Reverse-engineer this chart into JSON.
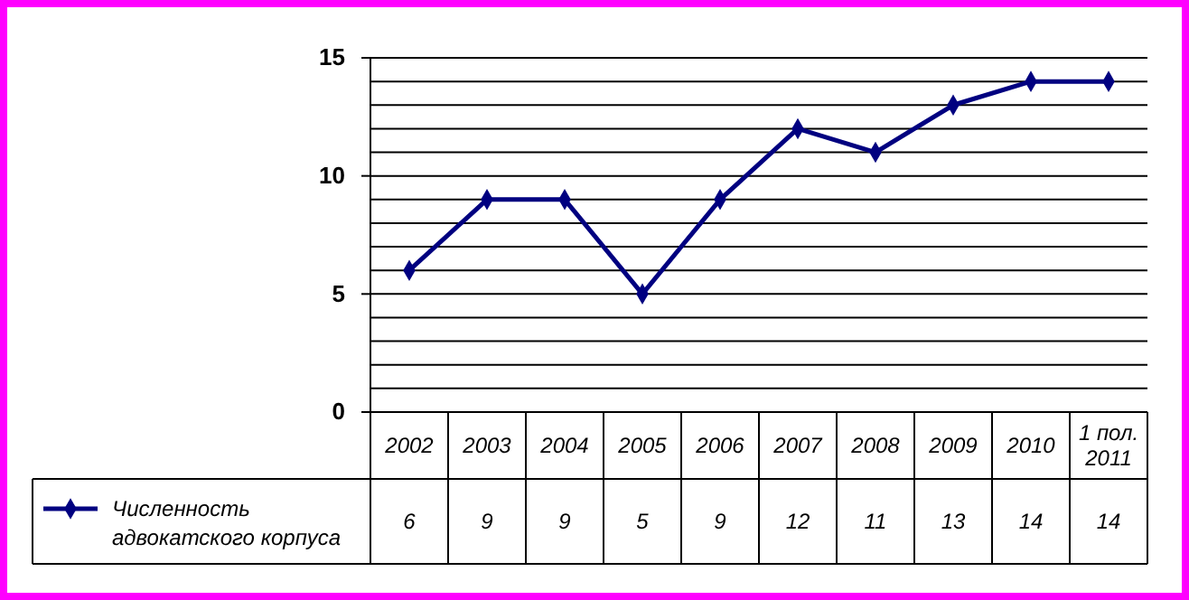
{
  "chart_data": {
    "type": "line",
    "categories": [
      "2002",
      "2003",
      "2004",
      "2005",
      "2006",
      "2007",
      "2008",
      "2009",
      "2010",
      "1 пол. 2011"
    ],
    "series": [
      {
        "name": "Численность адвокатского корпуса",
        "color": "#000080",
        "values": [
          6,
          9,
          9,
          5,
          9,
          12,
          11,
          13,
          14,
          14
        ]
      }
    ],
    "ylim": [
      0,
      15
    ],
    "yticks": [
      0,
      {
        "value": 1,
        "label": null
      },
      {
        "value": 2,
        "label": null
      },
      {
        "value": 3,
        "label": null
      },
      {
        "value": 4,
        "label": null
      },
      5,
      {
        "value": 6,
        "label": null
      },
      {
        "value": 7,
        "label": null
      },
      {
        "value": 8,
        "label": null
      },
      {
        "value": 9,
        "label": null
      },
      10,
      {
        "value": 11,
        "label": null
      },
      {
        "value": 12,
        "label": null
      },
      {
        "value": 13,
        "label": null
      },
      {
        "value": 14,
        "label": null
      },
      15
    ],
    "grid": "y",
    "marker": "diamond",
    "line_style": "solid",
    "legend": "bottom left",
    "data_labels": true
  }
}
